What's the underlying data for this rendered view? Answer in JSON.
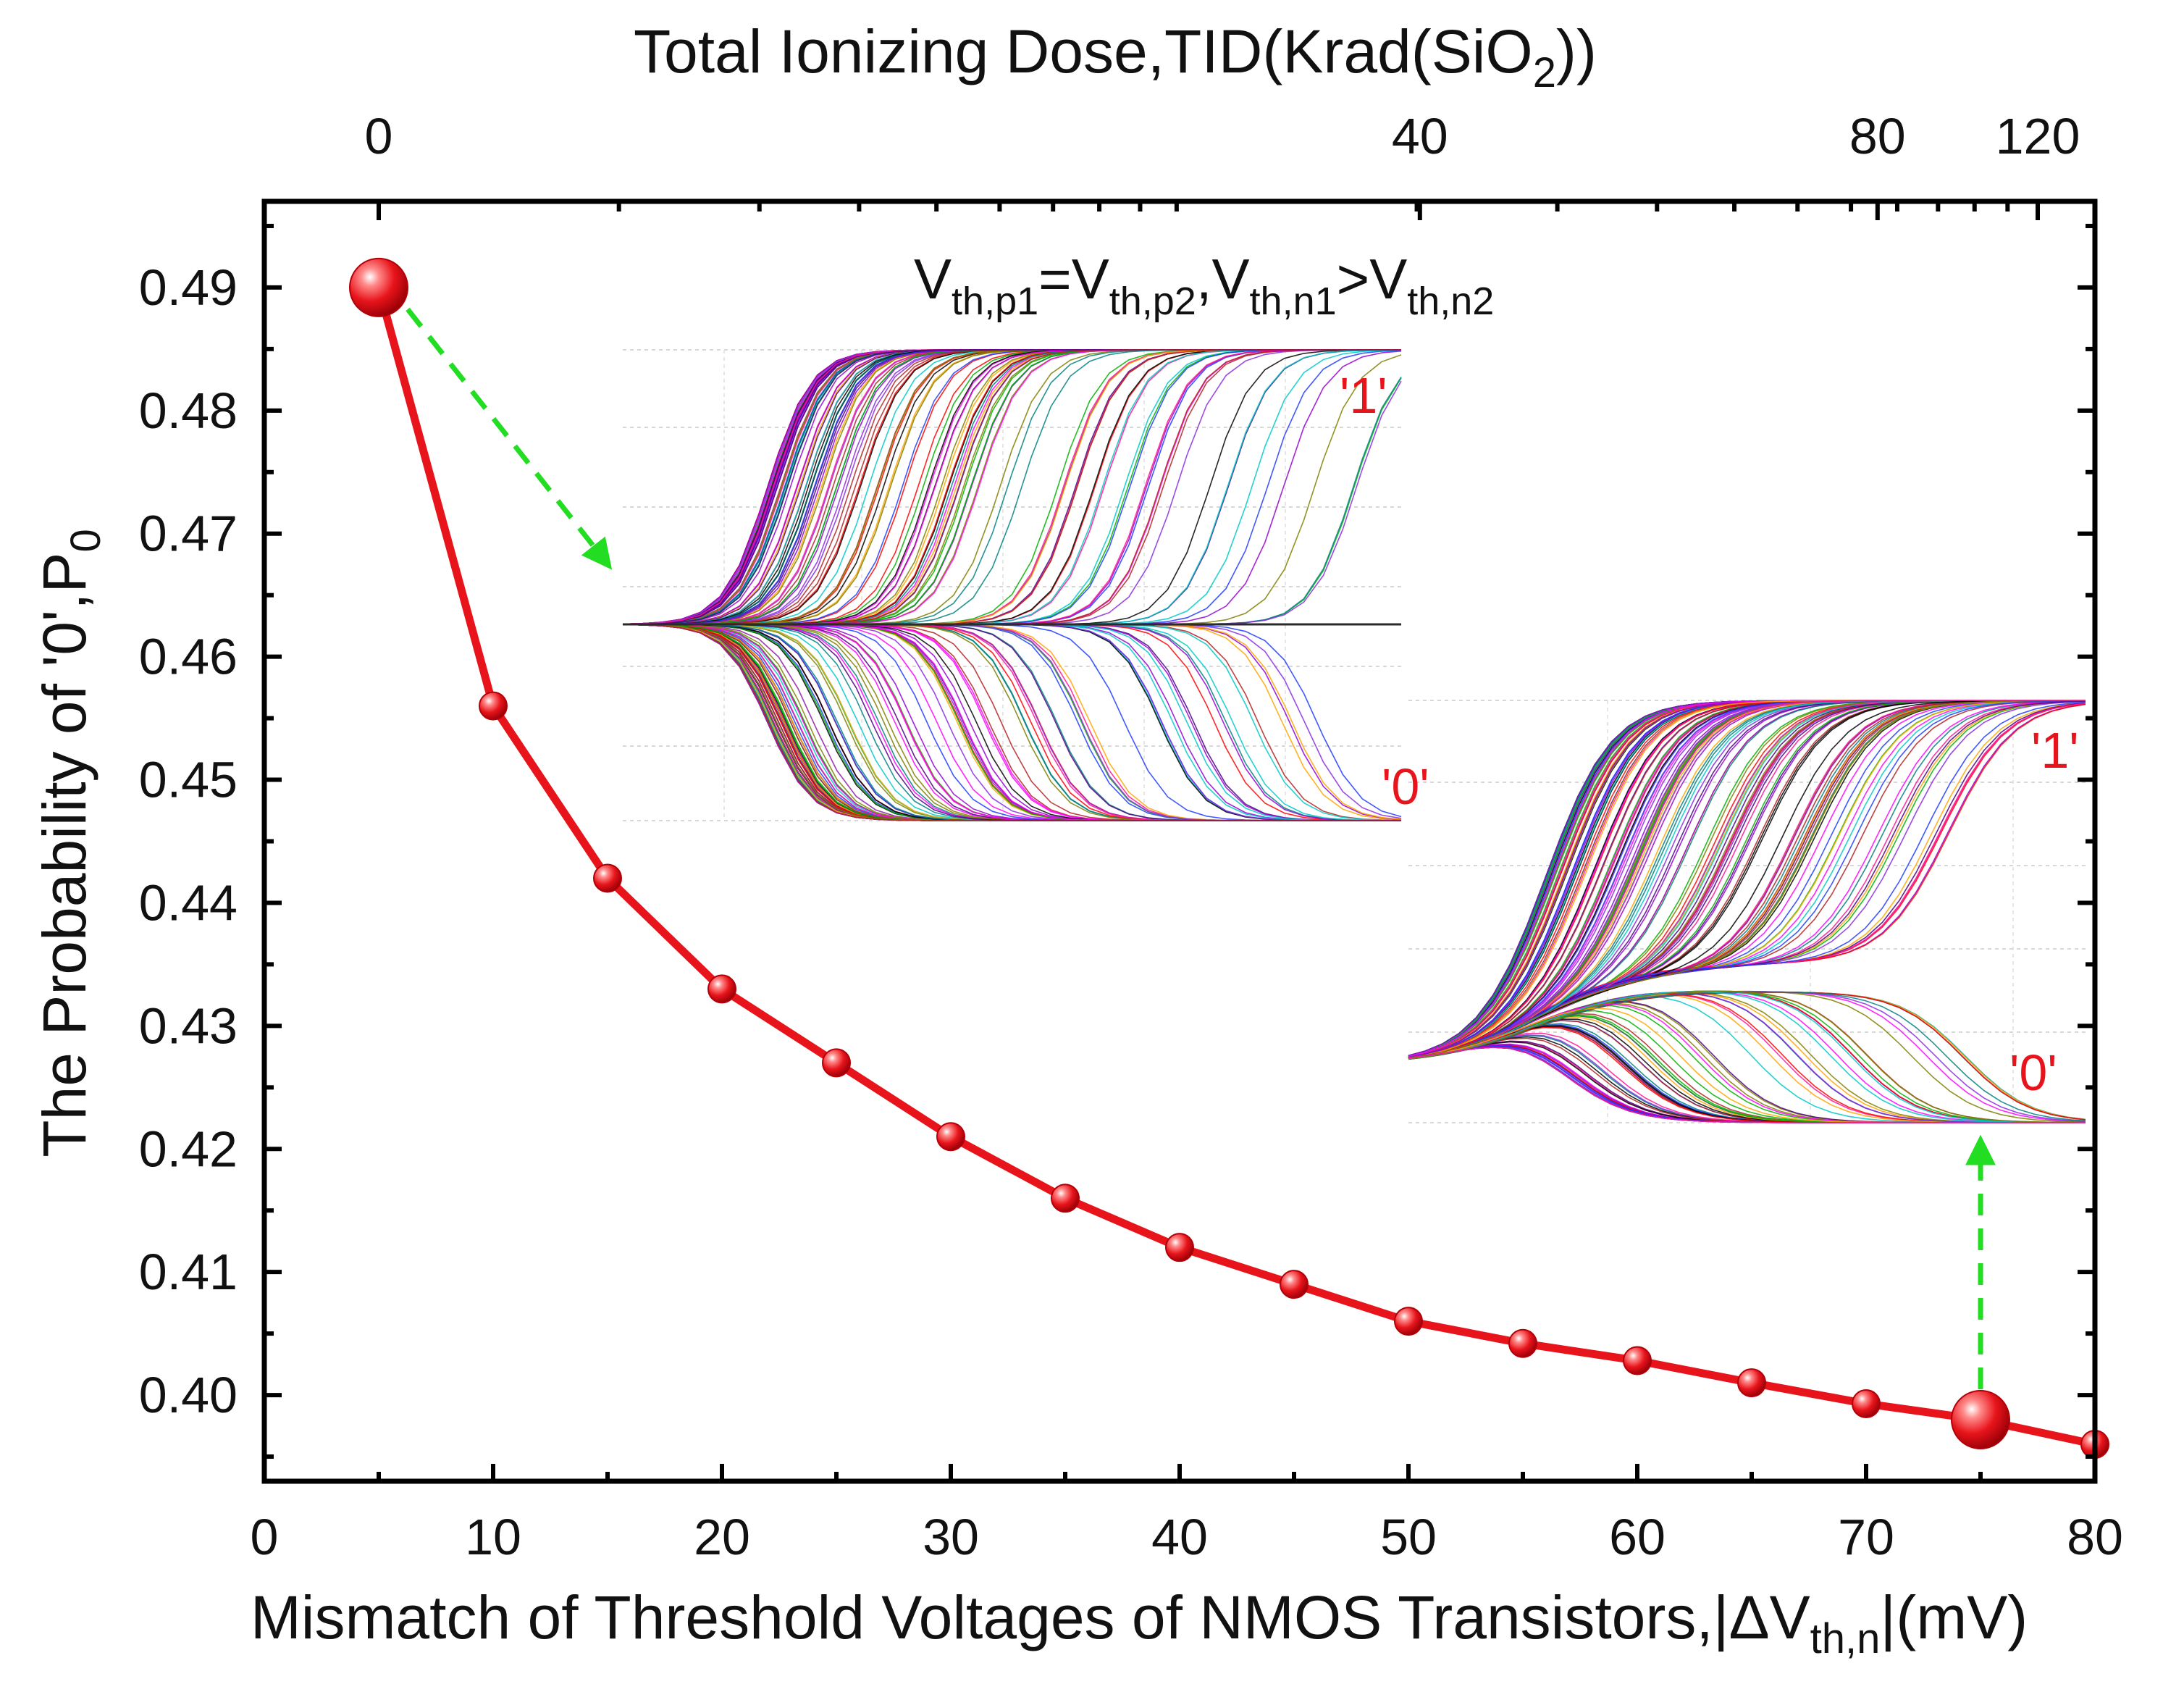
{
  "chart_data": {
    "type": "line",
    "title": "",
    "xlabel": {
      "main": "Mismatch of Threshold Voltages of NMOS Transistors,|",
      "delta": "Δ",
      "v": "V",
      "sub": "th,n",
      "tail": "|(mV)"
    },
    "ylabel": {
      "main": "The Probability of '0',P",
      "sub": "0"
    },
    "toplabel": {
      "main": "Total Ionizing Dose,TID(Krad(SiO",
      "sub": "2",
      "tail": "))"
    },
    "xlim": [
      0,
      80
    ],
    "ylim": [
      0.393,
      0.497
    ],
    "xticks": [
      {
        "v": 0,
        "t": "0"
      },
      {
        "v": 10,
        "t": "10"
      },
      {
        "v": 20,
        "t": "20"
      },
      {
        "v": 30,
        "t": "30"
      },
      {
        "v": 40,
        "t": "40"
      },
      {
        "v": 50,
        "t": "50"
      },
      {
        "v": 60,
        "t": "60"
      },
      {
        "v": 70,
        "t": "70"
      },
      {
        "v": 80,
        "t": "80"
      }
    ],
    "yticks": [
      {
        "v": 0.4,
        "t": "0.40"
      },
      {
        "v": 0.41,
        "t": "0.41"
      },
      {
        "v": 0.42,
        "t": "0.42"
      },
      {
        "v": 0.43,
        "t": "0.43"
      },
      {
        "v": 0.44,
        "t": "0.44"
      },
      {
        "v": 0.45,
        "t": "0.45"
      },
      {
        "v": 0.46,
        "t": "0.46"
      },
      {
        "v": 0.47,
        "t": "0.47"
      },
      {
        "v": 0.48,
        "t": "0.48"
      },
      {
        "v": 0.49,
        "t": "0.49"
      }
    ],
    "top_axis": {
      "scale": "log",
      "ticks": [
        {
          "x": 5,
          "t": "0"
        },
        {
          "x": 50.5,
          "t": "40"
        },
        {
          "x": 70.5,
          "t": "80"
        },
        {
          "x": 77.5,
          "t": "120"
        }
      ]
    },
    "series": [
      {
        "name": "P0",
        "color": "#e8141b",
        "x": [
          5,
          10,
          15,
          20,
          25,
          30,
          35,
          40,
          45,
          50,
          55,
          60,
          65,
          70,
          75,
          80
        ],
        "y": [
          0.49,
          0.456,
          0.442,
          0.433,
          0.427,
          0.421,
          0.416,
          0.412,
          0.409,
          0.406,
          0.4042,
          0.4028,
          0.401,
          0.3993,
          0.398,
          0.396
        ],
        "highlight_x": [
          5,
          75
        ]
      }
    ],
    "annotations": {
      "condition": {
        "v1": "V",
        "s1": "th,p1",
        "eq": "=V",
        "s2": "th,p2",
        "comma": ",V",
        "s3": "th,n1",
        "gt": ">V",
        "s4": "th,n2"
      },
      "inset1": {
        "label_one": "'1'",
        "label_zero": "'0'"
      },
      "inset2": {
        "label_one": "'1'",
        "label_zero": "'0'"
      },
      "arrow_color": "#22dd22"
    }
  }
}
